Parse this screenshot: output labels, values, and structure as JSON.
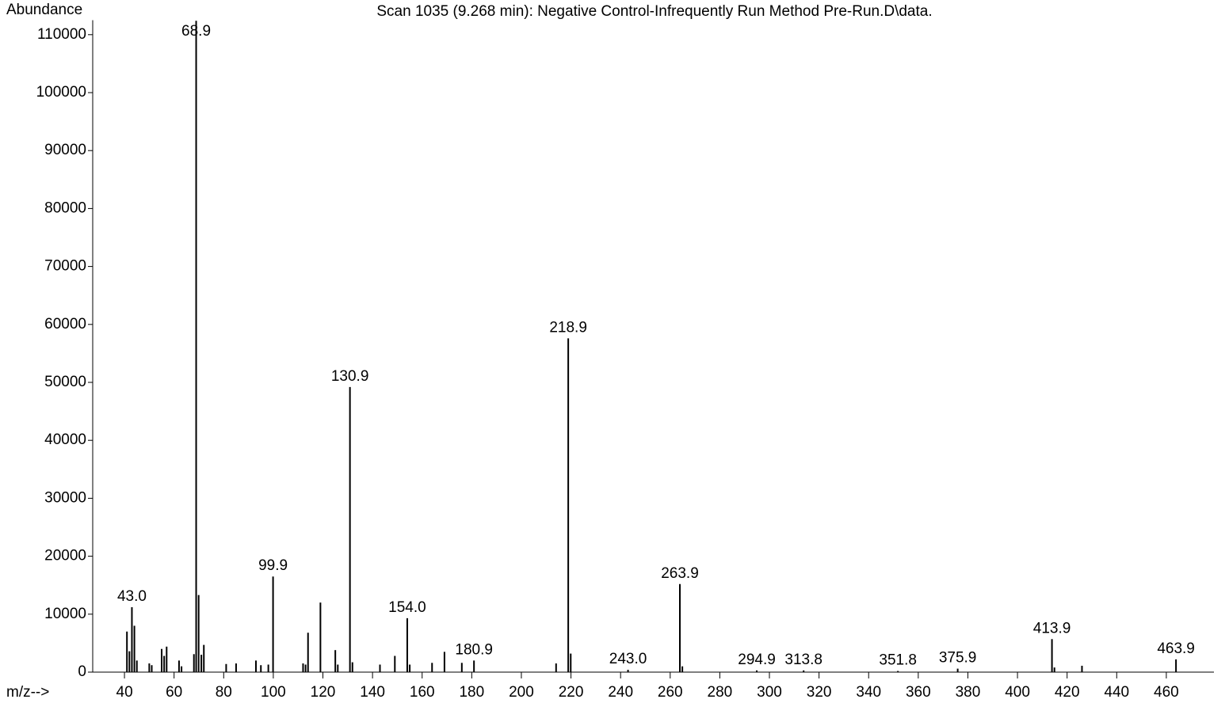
{
  "chart_data": {
    "type": "stick",
    "title": "Scan 1035 (9.268 min): Negative Control-Infrequently Run Method Pre-Run.D\\data.",
    "y_label": "Abundance",
    "x_label": "m/z-->",
    "color": "#000000",
    "xlim": [
      27.2,
      479.2
    ],
    "ylim": [
      0,
      112500
    ],
    "xticks": [
      40,
      60,
      80,
      100,
      120,
      140,
      160,
      180,
      200,
      220,
      240,
      260,
      280,
      300,
      320,
      340,
      360,
      380,
      400,
      420,
      440,
      460
    ],
    "yticks": [
      0,
      10000,
      20000,
      30000,
      40000,
      50000,
      60000,
      70000,
      80000,
      90000,
      100000,
      110000
    ],
    "x": [
      41,
      42,
      43.0,
      44,
      45,
      50,
      51,
      55,
      56,
      57,
      62,
      63,
      68,
      68.9,
      69.9,
      71,
      72,
      81,
      85,
      93,
      95,
      98,
      99.9,
      112,
      113,
      114,
      119,
      125,
      126,
      130.9,
      131.9,
      143,
      149,
      154.0,
      155,
      164,
      169,
      176,
      180.9,
      214,
      218.9,
      219.9,
      243.0,
      263.9,
      264.9,
      294.9,
      313.8,
      351.8,
      375.9,
      413.9,
      414.9,
      426,
      463.9
    ],
    "values": [
      7000,
      3600,
      11200,
      8000,
      2000,
      1500,
      1200,
      4000,
      2800,
      4400,
      2000,
      1000,
      3100,
      112400,
      13300,
      3000,
      4700,
      1400,
      1500,
      2000,
      1200,
      1300,
      16500,
      1500,
      1300,
      6800,
      12000,
      3800,
      1300,
      49200,
      1700,
      1300,
      2800,
      9300,
      1300,
      1600,
      3500,
      1600,
      2000,
      1500,
      57600,
      3200,
      400,
      15200,
      1000,
      300,
      300,
      200,
      600,
      5700,
      800,
      1100,
      2200
    ],
    "x_labels": [
      null,
      null,
      "43.0",
      null,
      null,
      null,
      null,
      null,
      null,
      null,
      null,
      null,
      null,
      "68.9",
      null,
      null,
      null,
      null,
      null,
      null,
      null,
      null,
      "99.9",
      null,
      null,
      null,
      null,
      null,
      null,
      "130.9",
      null,
      null,
      null,
      "154.0",
      null,
      null,
      null,
      null,
      "180.9",
      null,
      "218.9",
      null,
      "243.0",
      "263.9",
      null,
      "294.9",
      "313.8",
      "351.8",
      "375.9",
      "413.9",
      null,
      null,
      "463.9"
    ]
  }
}
